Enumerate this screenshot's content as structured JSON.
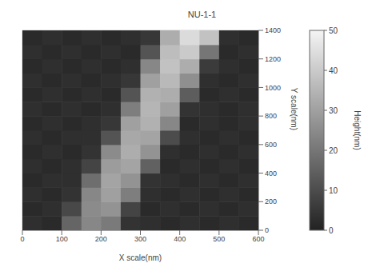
{
  "chart_data": {
    "type": "heatmap",
    "title": "NU-1-1",
    "x_label": "X scale(nm)",
    "y_label": "Y scale(nm)",
    "x": [
      25,
      75,
      125,
      175,
      225,
      275,
      325,
      375,
      425,
      475,
      525,
      575
    ],
    "y": [
      50,
      150,
      250,
      350,
      450,
      550,
      650,
      750,
      850,
      950,
      1050,
      1150,
      1250,
      1350
    ],
    "z": [
      [
        3,
        2,
        16,
        24,
        21,
        4,
        3,
        2,
        3,
        2,
        3,
        2
      ],
      [
        2,
        3,
        9,
        25,
        27,
        8,
        2,
        3,
        2,
        3,
        2,
        3
      ],
      [
        3,
        2,
        4,
        24,
        30,
        22,
        3,
        2,
        3,
        2,
        3,
        2
      ],
      [
        2,
        3,
        3,
        18,
        31,
        27,
        4,
        3,
        2,
        3,
        2,
        3
      ],
      [
        3,
        2,
        3,
        8,
        29,
        31,
        15,
        2,
        3,
        2,
        3,
        2
      ],
      [
        2,
        3,
        2,
        4,
        25,
        33,
        27,
        3,
        2,
        3,
        2,
        3
      ],
      [
        3,
        2,
        3,
        3,
        12,
        32,
        31,
        10,
        3,
        2,
        3,
        2
      ],
      [
        2,
        3,
        2,
        3,
        5,
        30,
        34,
        24,
        2,
        3,
        2,
        3
      ],
      [
        3,
        2,
        3,
        2,
        3,
        22,
        35,
        30,
        4,
        3,
        2,
        3
      ],
      [
        2,
        3,
        2,
        3,
        2,
        12,
        34,
        33,
        14,
        2,
        3,
        2
      ],
      [
        3,
        2,
        3,
        2,
        3,
        5,
        30,
        36,
        26,
        3,
        2,
        3
      ],
      [
        2,
        3,
        2,
        3,
        2,
        3,
        24,
        38,
        33,
        6,
        3,
        2
      ],
      [
        3,
        2,
        3,
        2,
        3,
        2,
        12,
        37,
        40,
        20,
        2,
        3
      ],
      [
        2,
        3,
        2,
        3,
        2,
        3,
        5,
        33,
        44,
        38,
        3,
        2
      ]
    ],
    "xlim": [
      0,
      600
    ],
    "xticks": [
      0,
      100,
      200,
      300,
      400,
      500,
      600
    ],
    "ylim": [
      0,
      1400
    ],
    "yticks": [
      0,
      200,
      400,
      600,
      800,
      1000,
      1200,
      1400
    ],
    "grid": true,
    "colorbar": {
      "label": "Height(nm)",
      "range": [
        0,
        50
      ],
      "ticks": [
        0,
        10,
        20,
        30,
        40,
        50
      ],
      "colors": [
        "#222222",
        "#f4f4f4"
      ]
    }
  }
}
